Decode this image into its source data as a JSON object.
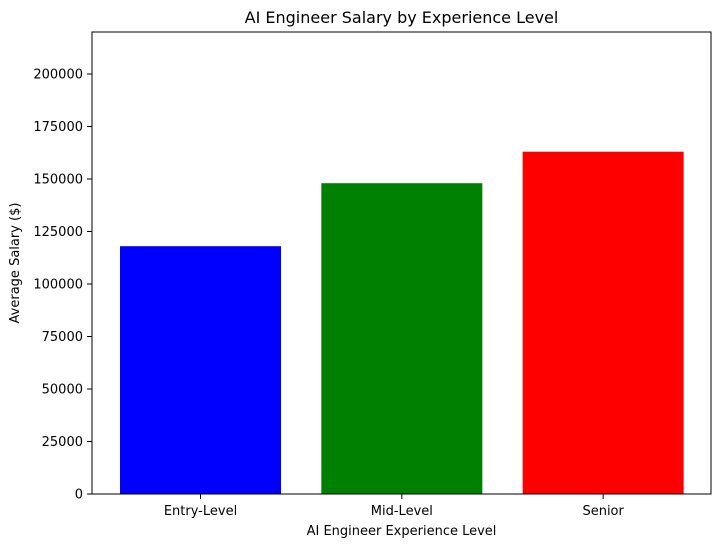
{
  "chart_data": {
    "type": "bar",
    "title": "AI Engineer Salary by Experience Level",
    "xlabel": "AI Engineer Experience Level",
    "ylabel": "Average Salary ($)",
    "categories": [
      "Entry-Level",
      "Mid-Level",
      "Senior"
    ],
    "values": [
      118000,
      148000,
      163000
    ],
    "colors": [
      "#0000ff",
      "#008000",
      "#ff0000"
    ],
    "ylim": [
      0,
      220000
    ],
    "yticks": [
      0,
      25000,
      50000,
      75000,
      100000,
      125000,
      150000,
      175000,
      200000
    ],
    "ytick_labels": [
      "0",
      "25000",
      "50000",
      "75000",
      "100000",
      "125000",
      "150000",
      "175000",
      "200000"
    ],
    "grid": false,
    "legend": null
  }
}
